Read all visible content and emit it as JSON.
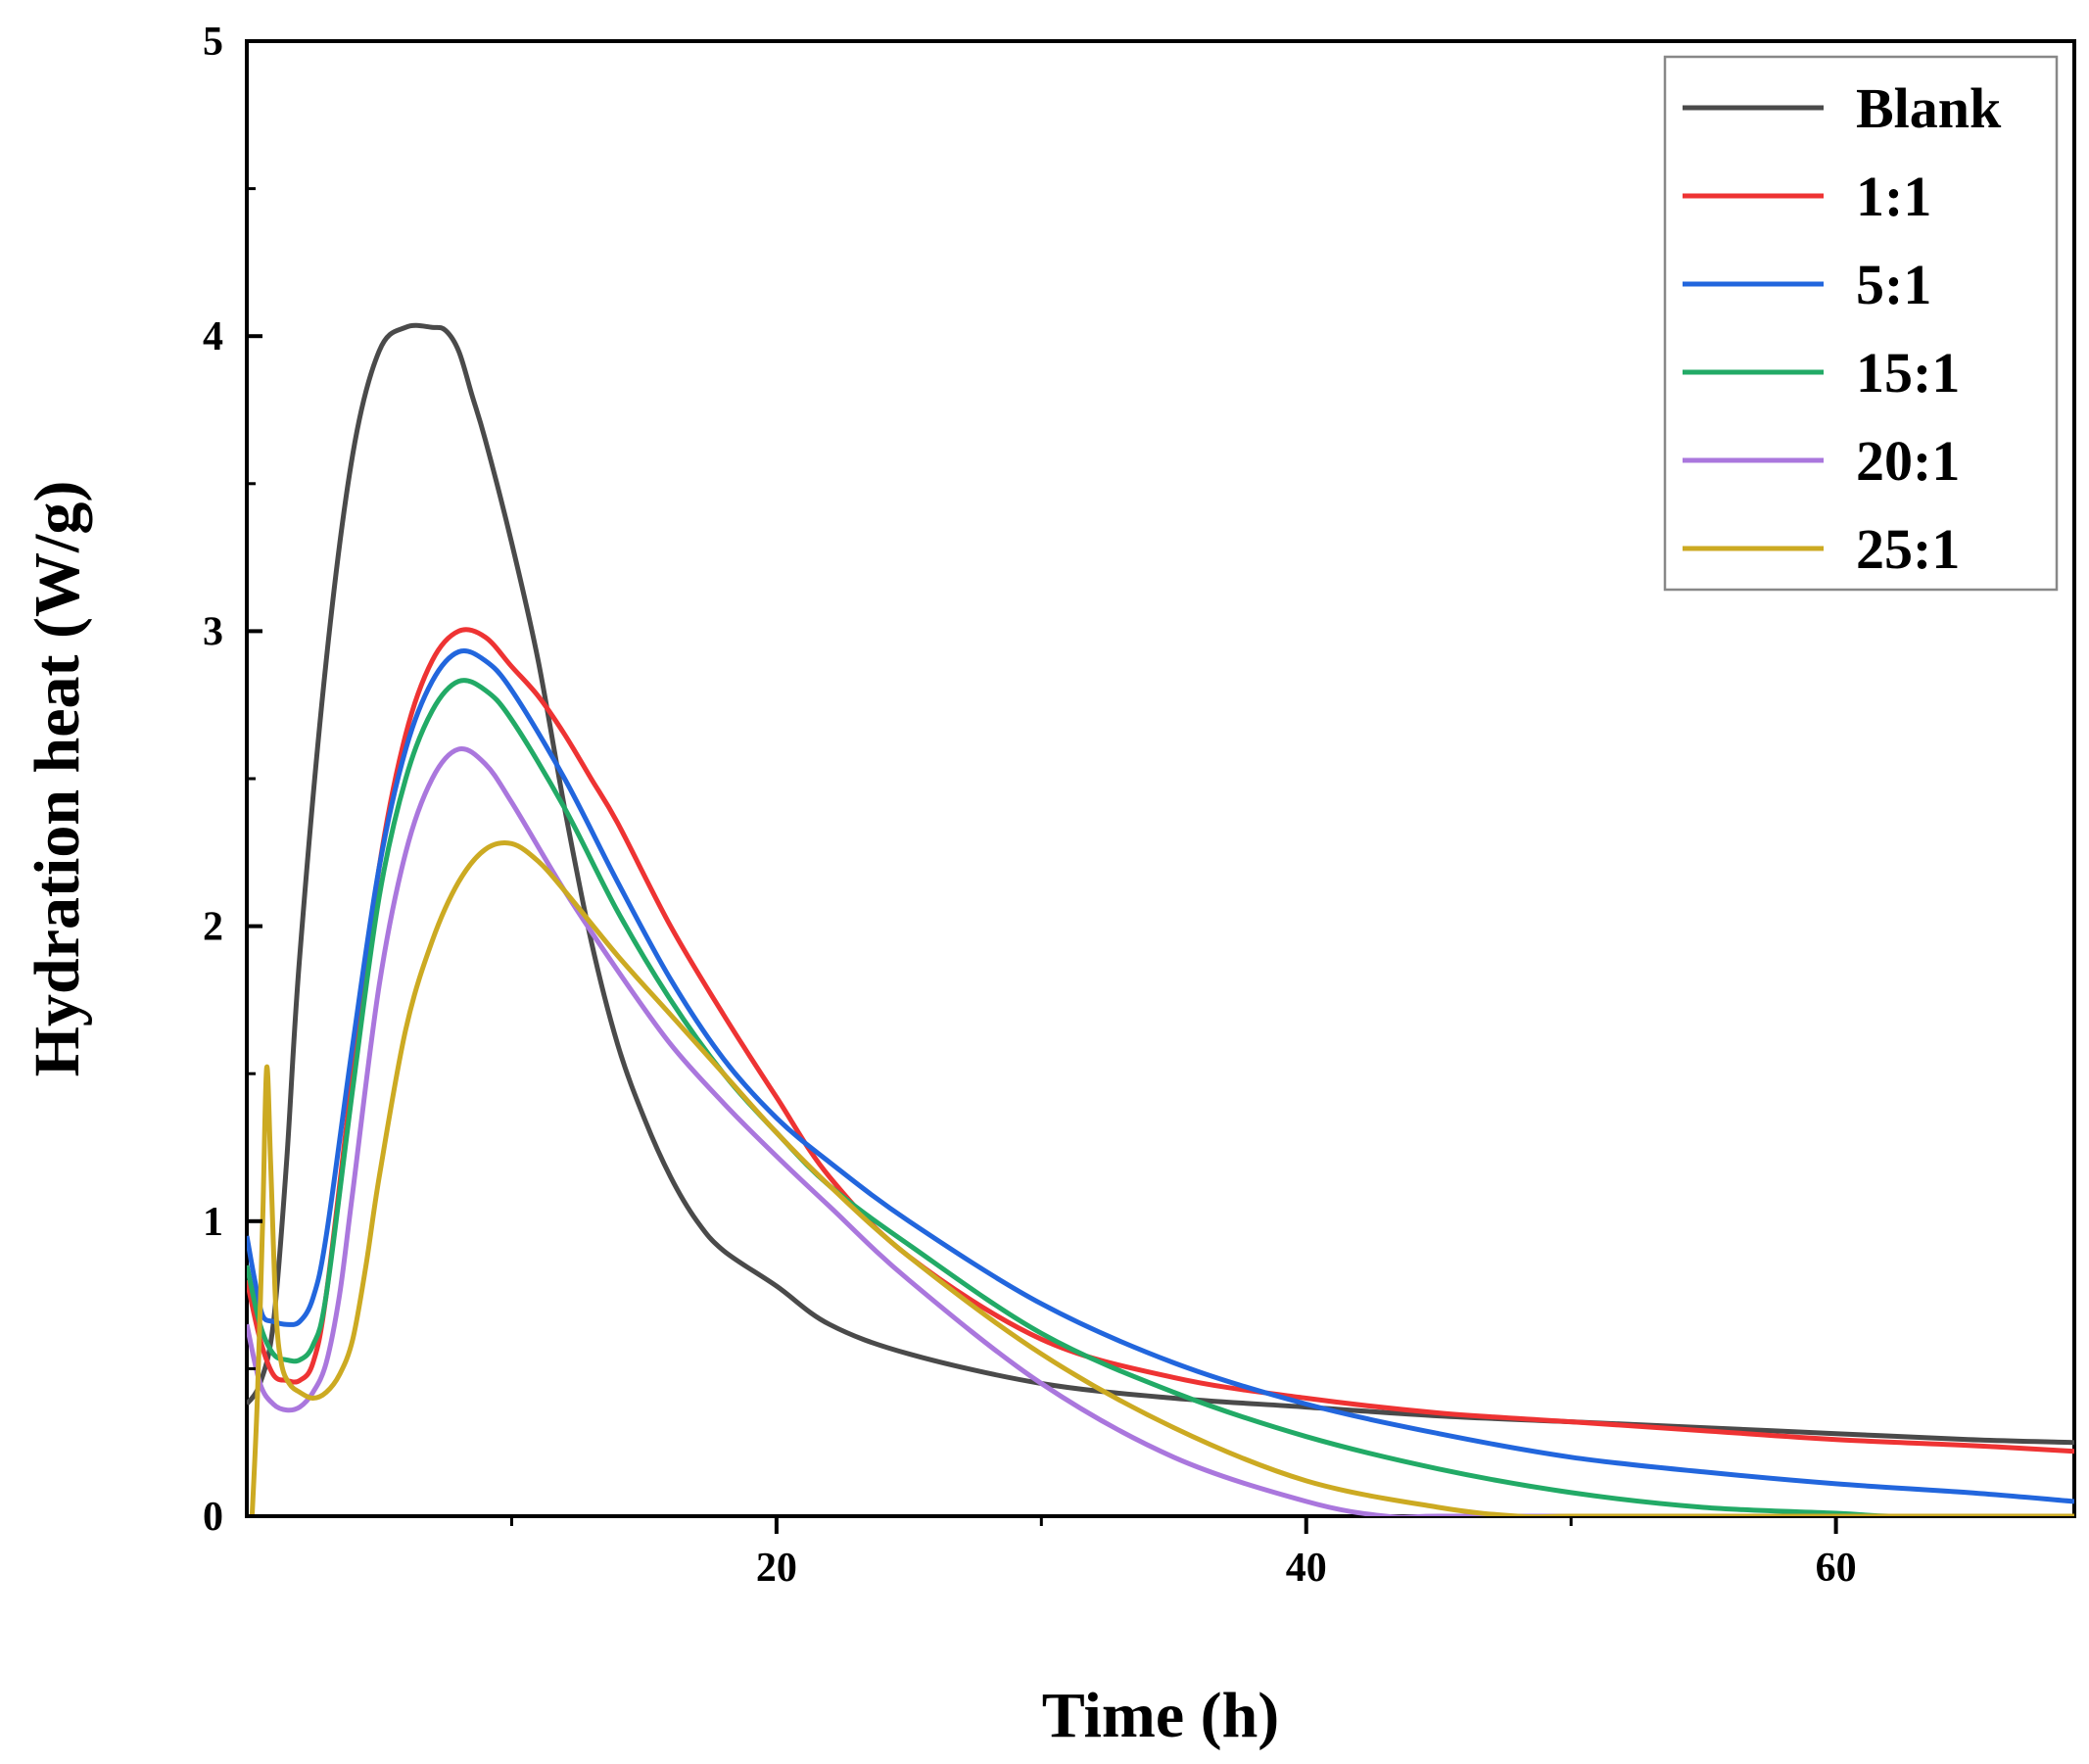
{
  "chart_data": {
    "type": "line",
    "title": "",
    "xlabel": "Time (h)",
    "ylabel": "Hydration heat (W/g)",
    "xlim": [
      0,
      69
    ],
    "ylim": [
      0,
      5
    ],
    "xticks": [
      20,
      40,
      60
    ],
    "yticks": [
      0,
      1,
      2,
      3,
      4,
      5
    ],
    "grid": false,
    "legend_position": "top-right",
    "series": [
      {
        "name": "Blank",
        "color": "#4a4a4a",
        "x": [
          0,
          0.5,
          1,
          1.5,
          2,
          3,
          4,
          5,
          6,
          7,
          7.5,
          8,
          8.5,
          9,
          10,
          11,
          12,
          13,
          14,
          15,
          16,
          17,
          18,
          20,
          22,
          25,
          30,
          35,
          40,
          45,
          50,
          55,
          60,
          65,
          69
        ],
        "y": [
          0.38,
          0.45,
          0.65,
          1.2,
          1.9,
          2.9,
          3.6,
          3.95,
          4.03,
          4.03,
          4.02,
          3.95,
          3.8,
          3.65,
          3.3,
          2.9,
          2.4,
          1.95,
          1.6,
          1.35,
          1.15,
          1.0,
          0.9,
          0.78,
          0.65,
          0.55,
          0.45,
          0.4,
          0.37,
          0.34,
          0.32,
          0.3,
          0.28,
          0.26,
          0.25
        ]
      },
      {
        "name": "1:1",
        "color": "#ee3333",
        "x": [
          0,
          0.5,
          1,
          1.5,
          2,
          2.5,
          3,
          4,
          5,
          6,
          7,
          8,
          9,
          10,
          11,
          12,
          13,
          14,
          16,
          18,
          20,
          22,
          25,
          30,
          35,
          40,
          45,
          50,
          55,
          60,
          65,
          69
        ],
        "y": [
          0.8,
          0.6,
          0.48,
          0.46,
          0.46,
          0.52,
          0.75,
          1.5,
          2.2,
          2.65,
          2.9,
          3.0,
          2.98,
          2.88,
          2.78,
          2.65,
          2.5,
          2.35,
          2.0,
          1.7,
          1.42,
          1.15,
          0.88,
          0.6,
          0.47,
          0.4,
          0.35,
          0.32,
          0.29,
          0.26,
          0.24,
          0.22
        ]
      },
      {
        "name": "5:1",
        "color": "#2266dd",
        "x": [
          0,
          0.3,
          0.6,
          1,
          1.5,
          2,
          2.5,
          3,
          4,
          5,
          6,
          7,
          8,
          9,
          10,
          12,
          14,
          16,
          18,
          20,
          22,
          25,
          30,
          35,
          40,
          45,
          50,
          55,
          60,
          65,
          69
        ],
        "y": [
          0.95,
          0.8,
          0.68,
          0.66,
          0.65,
          0.66,
          0.74,
          0.95,
          1.6,
          2.2,
          2.6,
          2.83,
          2.93,
          2.9,
          2.8,
          2.5,
          2.15,
          1.82,
          1.55,
          1.35,
          1.2,
          1.0,
          0.72,
          0.52,
          0.38,
          0.28,
          0.2,
          0.15,
          0.11,
          0.08,
          0.05
        ]
      },
      {
        "name": "15:1",
        "color": "#22aa66",
        "x": [
          0,
          0.5,
          1,
          1.5,
          2,
          2.5,
          3,
          4,
          5,
          6,
          7,
          8,
          9,
          10,
          12,
          14,
          16,
          18,
          20,
          22,
          25,
          30,
          35,
          40,
          45,
          50,
          55,
          60,
          62,
          65,
          69
        ],
        "y": [
          0.85,
          0.65,
          0.55,
          0.53,
          0.53,
          0.58,
          0.75,
          1.45,
          2.1,
          2.5,
          2.73,
          2.83,
          2.8,
          2.7,
          2.4,
          2.05,
          1.75,
          1.5,
          1.3,
          1.12,
          0.92,
          0.62,
          0.42,
          0.27,
          0.16,
          0.08,
          0.03,
          0.01,
          0.0,
          0.0,
          0.0
        ]
      },
      {
        "name": "20:1",
        "color": "#aa77dd",
        "x": [
          0,
          0.5,
          1,
          1.5,
          2,
          2.5,
          3,
          3.5,
          4,
          5,
          6,
          7,
          8,
          9,
          10,
          12,
          14,
          16,
          18,
          20,
          22,
          25,
          30,
          35,
          40,
          43,
          45,
          50,
          55,
          60,
          65,
          69
        ],
        "y": [
          0.65,
          0.45,
          0.38,
          0.36,
          0.37,
          0.42,
          0.52,
          0.75,
          1.1,
          1.8,
          2.25,
          2.5,
          2.6,
          2.55,
          2.42,
          2.12,
          1.85,
          1.6,
          1.4,
          1.22,
          1.05,
          0.8,
          0.45,
          0.2,
          0.05,
          0.0,
          0.0,
          0.0,
          0.0,
          0.0,
          0.0,
          0.0
        ]
      },
      {
        "name": "25:1",
        "color": "#ccaa22",
        "x": [
          0.2,
          0.4,
          0.6,
          0.75,
          0.9,
          1.1,
          1.3,
          1.6,
          2,
          2.5,
          3,
          3.5,
          4,
          4.5,
          5,
          6,
          7,
          8,
          9,
          10,
          11,
          12,
          14,
          16,
          18,
          20,
          22,
          25,
          30,
          35,
          40,
          45,
          48,
          50,
          55,
          60,
          65,
          69
        ],
        "y": [
          0.0,
          0.4,
          1.0,
          1.52,
          1.2,
          0.7,
          0.52,
          0.45,
          0.42,
          0.4,
          0.42,
          0.48,
          0.6,
          0.85,
          1.15,
          1.65,
          1.95,
          2.15,
          2.26,
          2.28,
          2.22,
          2.12,
          1.9,
          1.7,
          1.5,
          1.3,
          1.12,
          0.88,
          0.55,
          0.3,
          0.12,
          0.03,
          0.0,
          0.0,
          0.0,
          0.0,
          0.0,
          0.0
        ]
      }
    ]
  }
}
